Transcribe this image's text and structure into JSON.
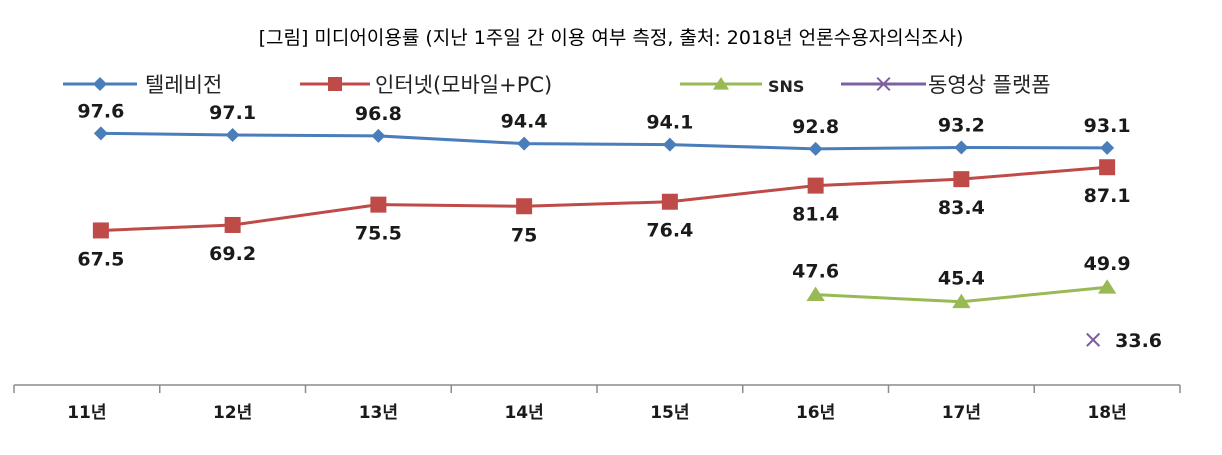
{
  "chart_data": {
    "type": "line",
    "title": "[그림] 미디어이용률 (지난 1주일 간 이용 여부 측정, 출처: 2018년 언론수용자의식조사)",
    "categories": [
      "11년",
      "12년",
      "13년",
      "14년",
      "15년",
      "16년",
      "17년",
      "18년"
    ],
    "legend_position": "top",
    "grid": false,
    "series": [
      {
        "name": "텔레비전",
        "color": "#4a7ebb",
        "marker": "diamond",
        "values": [
          97.6,
          97.1,
          96.8,
          94.4,
          94.1,
          92.8,
          93.2,
          93.1
        ],
        "labels": [
          "97.6",
          "97.1",
          "96.8",
          "94.4",
          "94.1",
          "92.8",
          "93.2",
          "93.1"
        ]
      },
      {
        "name": "인터넷(모바일+PC)",
        "color": "#be4b48",
        "marker": "square",
        "values": [
          67.5,
          69.2,
          75.5,
          75,
          76.4,
          81.4,
          83.4,
          87.1
        ],
        "labels": [
          "67.5",
          "69.2",
          "75.5",
          "75",
          "76.4",
          "81.4",
          "83.4",
          "87.1"
        ]
      },
      {
        "name": "SNS",
        "color": "#98b954",
        "marker": "triangle",
        "values": [
          null,
          null,
          null,
          null,
          null,
          47.6,
          45.4,
          49.9
        ],
        "labels": [
          "",
          "",
          "",
          "",
          "",
          "47.6",
          "45.4",
          "49.9"
        ]
      },
      {
        "name": "동영상 플랫폼",
        "color": "#7d60a0",
        "marker": "x",
        "values": [
          null,
          null,
          null,
          null,
          null,
          null,
          null,
          33.6
        ],
        "labels": [
          "",
          "",
          "",
          "",
          "",
          "",
          "",
          "33.6"
        ]
      }
    ]
  }
}
